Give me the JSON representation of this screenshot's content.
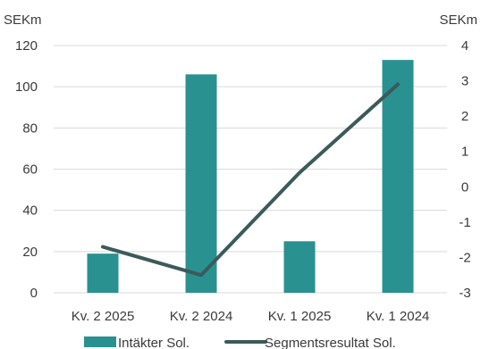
{
  "chart_data": {
    "type": "bar",
    "categories": [
      "Kv. 2 2025",
      "Kv. 2 2024",
      "Kv. 1 2025",
      "Kv. 1 2024"
    ],
    "series": [
      {
        "name": "Intäkter Sol.",
        "type": "bar",
        "axis": "left",
        "values": [
          19,
          106,
          25,
          113
        ]
      },
      {
        "name": "Segmentsresultat Sol.",
        "type": "line",
        "axis": "right",
        "values": [
          -1.7,
          -2.5,
          0.4,
          2.9
        ]
      }
    ],
    "y_left": {
      "unit": "SEKm",
      "min": 0,
      "max": 120,
      "ticks": [
        "0",
        "20",
        "40",
        "60",
        "80",
        "100",
        "120"
      ]
    },
    "y_right": {
      "unit": "SEKm",
      "min": -3,
      "max": 4,
      "ticks": [
        "-3",
        "-2",
        "-1",
        "0",
        "1",
        "2",
        "3",
        "4"
      ]
    },
    "grid": true,
    "legend": "bottom",
    "colors": {
      "bar": "#2a9191",
      "line": "#3c5a5a",
      "grid": "#d9d9d9",
      "text": "#3a3a3a"
    }
  }
}
